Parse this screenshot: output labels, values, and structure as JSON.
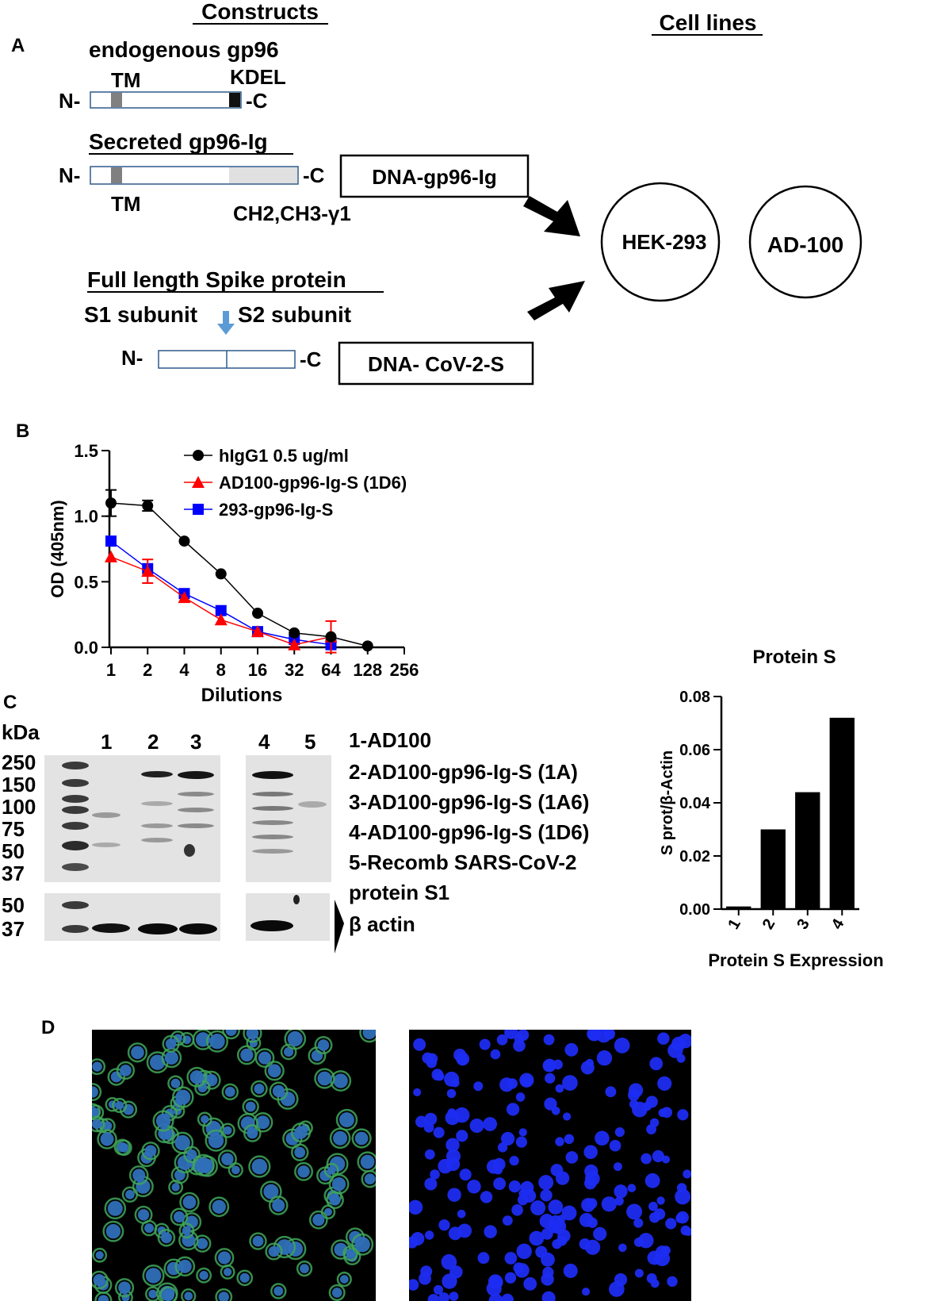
{
  "panels": {
    "a": "A",
    "b": "B",
    "c": "C",
    "d": "D"
  },
  "constructs": {
    "header": "Constructs",
    "endogenous_title": "endogenous gp96",
    "tm": "TM",
    "kdel": "KDEL",
    "n_term": "N-",
    "c_term": "-C",
    "secreted_title": "Secreted gp96-Ig",
    "ch_label": "CH2,CH3-γ1",
    "dna_gp96": "DNA-gp96-Ig",
    "spike_title": "Full length Spike protein",
    "s1": "S1 subunit",
    "s2": "S2 subunit",
    "dna_spike": "DNA- CoV-2-S",
    "cell_lines_header": "Cell lines",
    "cell_line_1": "HEK-293",
    "cell_line_2": "AD-100"
  },
  "chart_data": [
    {
      "type": "line",
      "panel": "B",
      "xlabel": "Dilutions",
      "ylabel": "OD (405nm)",
      "x_scale": "log2",
      "x_ticks": [
        "1",
        "2",
        "4",
        "8",
        "16",
        "32",
        "64",
        "128",
        "256"
      ],
      "y_ticks": [
        "0.0",
        "0.5",
        "1.0",
        "1.5"
      ],
      "ylim": [
        0,
        1.5
      ],
      "series": [
        {
          "name": "hIgG1 0.5 ug/ml",
          "color": "#000000",
          "marker": "circle",
          "x": [
            1,
            2,
            4,
            8,
            16,
            32,
            64,
            128
          ],
          "y": [
            1.1,
            1.08,
            0.81,
            0.56,
            0.26,
            0.11,
            0.08,
            0.01
          ],
          "err": [
            0.1,
            0.04,
            0.0,
            0.0,
            0.0,
            0.0,
            0.0,
            0.0
          ]
        },
        {
          "name": "AD100-gp96-Ig-S (1D6)",
          "color": "#ff0000",
          "marker": "triangle",
          "x": [
            1,
            2,
            4,
            8,
            16,
            32,
            64
          ],
          "y": [
            0.69,
            0.58,
            0.38,
            0.21,
            0.12,
            0.02,
            0.08
          ],
          "err": [
            0.0,
            0.09,
            0.0,
            0.0,
            0.0,
            0.0,
            0.12
          ]
        },
        {
          "name": "293-gp96-Ig-S",
          "color": "#0000ff",
          "marker": "square",
          "x": [
            1,
            2,
            4,
            8,
            16,
            32,
            64
          ],
          "y": [
            0.81,
            0.6,
            0.41,
            0.28,
            0.12,
            0.06,
            0.02
          ],
          "err": [
            0.0,
            0.0,
            0.0,
            0.0,
            0.0,
            0.0,
            0.0
          ]
        }
      ]
    },
    {
      "type": "bar",
      "panel": "C",
      "title": "Protein S",
      "xlabel": "Protein S Expression",
      "ylabel": "S prot/β-Actin",
      "categories": [
        "1",
        "2",
        "3",
        "4"
      ],
      "values": [
        0.001,
        0.03,
        0.044,
        0.072
      ],
      "y_ticks": [
        "0.00",
        "0.02",
        "0.04",
        "0.06",
        "0.08"
      ],
      "ylim": [
        0,
        0.08
      ],
      "color": "#000000"
    }
  ],
  "western": {
    "kda_label": "kDa",
    "markers": [
      "250",
      "150",
      "100",
      "75",
      "50",
      "37"
    ],
    "actin_markers": [
      "50",
      "37"
    ],
    "lane_numbers": [
      "1",
      "2",
      "3",
      "4",
      "5"
    ],
    "legend": [
      "1-AD100",
      "2-AD100-gp96-Ig-S (1A)",
      "3-AD100-gp96-Ig-S (1A6)",
      "4-AD100-gp96-Ig-S (1D6)",
      "5-Recomb SARS-CoV-2",
      "protein S1"
    ],
    "actin_label": "β actin"
  }
}
